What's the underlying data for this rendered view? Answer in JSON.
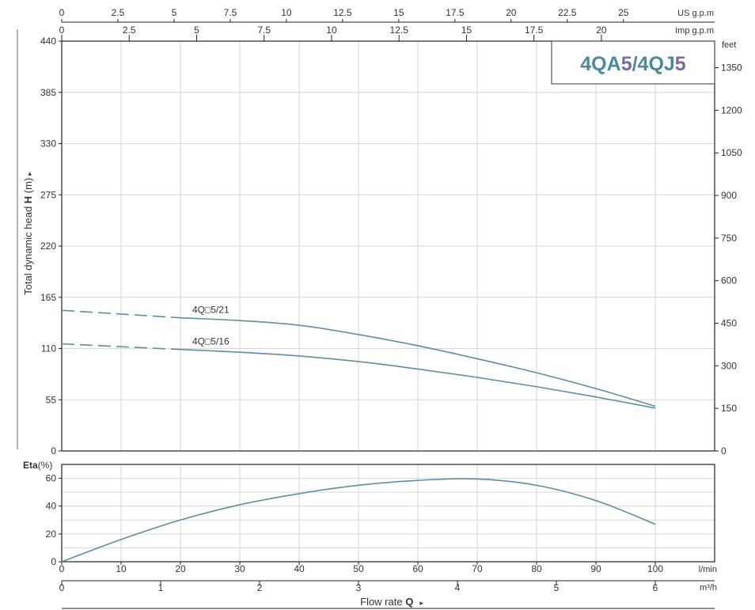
{
  "chart_data": {
    "type": "line",
    "badge": {
      "part1": "4QA",
      "part2": "5",
      "part3": "/4QJ",
      "part4": "5"
    },
    "head_chart": {
      "ylabel_prefix": "Total dynamic head ",
      "ylabel_symbol": "H",
      "ylabel_unit": " (m)",
      "ylabel_arrow": "▸",
      "ylim": [
        0,
        440
      ],
      "yticks": [
        "0",
        "55",
        "110",
        "165",
        "220",
        "275",
        "330",
        "385",
        "440"
      ],
      "right_axis_unit": "feet",
      "right_ticks": [
        "0",
        "150",
        "300",
        "450",
        "600",
        "750",
        "900",
        "1050",
        "1200",
        "1350"
      ],
      "series": [
        {
          "name": "4Q□5/21",
          "dashed_until": 20,
          "x": [
            0,
            10,
            20,
            30,
            40,
            50,
            60,
            70,
            80,
            90,
            100
          ],
          "y": [
            151,
            147,
            143,
            140,
            135,
            125,
            113,
            99,
            84,
            67,
            48
          ]
        },
        {
          "name": "4Q□5/16",
          "dashed_until": 20,
          "x": [
            0,
            10,
            20,
            30,
            40,
            50,
            60,
            70,
            80,
            90,
            100
          ],
          "y": [
            115,
            112,
            109,
            106,
            102,
            96,
            88,
            79,
            69,
            58,
            46
          ]
        }
      ]
    },
    "efficiency_chart": {
      "ylabel_bold": "Eta",
      "ylabel_unit": "(%)",
      "ylim": [
        0,
        70
      ],
      "yticks": [
        "0",
        "20",
        "40",
        "60"
      ],
      "series": [
        {
          "x": [
            0,
            10,
            20,
            30,
            40,
            50,
            60,
            70,
            80,
            90,
            100
          ],
          "y": [
            0,
            16,
            30,
            41,
            49,
            55,
            58.5,
            59.5,
            55,
            44,
            27
          ]
        }
      ]
    },
    "x_axes": {
      "lpm_ticks": [
        "0",
        "10",
        "20",
        "30",
        "40",
        "50",
        "60",
        "70",
        "80",
        "90",
        "100"
      ],
      "lpm_unit": "l/min",
      "m3h_ticks": [
        "0",
        "1",
        "2",
        "3",
        "4",
        "5",
        "6"
      ],
      "m3h_unit": "m³/h",
      "us_gpm_ticks": [
        "0",
        "2.5",
        "5",
        "7.5",
        "10",
        "12.5",
        "15",
        "17.5",
        "20",
        "22.5",
        "25"
      ],
      "us_gpm_unit": "US g.p.m",
      "imp_gpm_ticks": [
        "0",
        "2.5",
        "5",
        "7.5",
        "10",
        "12.5",
        "15",
        "17.5",
        "20"
      ],
      "imp_gpm_unit": "Imp g.p.m",
      "xlabel_text": "Flow rate ",
      "xlabel_symbol": "Q",
      "xlabel_arrow": "▸"
    },
    "colors": {
      "curve": "#5b8fa3",
      "badge_teal": "#4a8a9b",
      "badge_purple": "#7b6aa8",
      "grid": "#d6d6d6"
    }
  }
}
